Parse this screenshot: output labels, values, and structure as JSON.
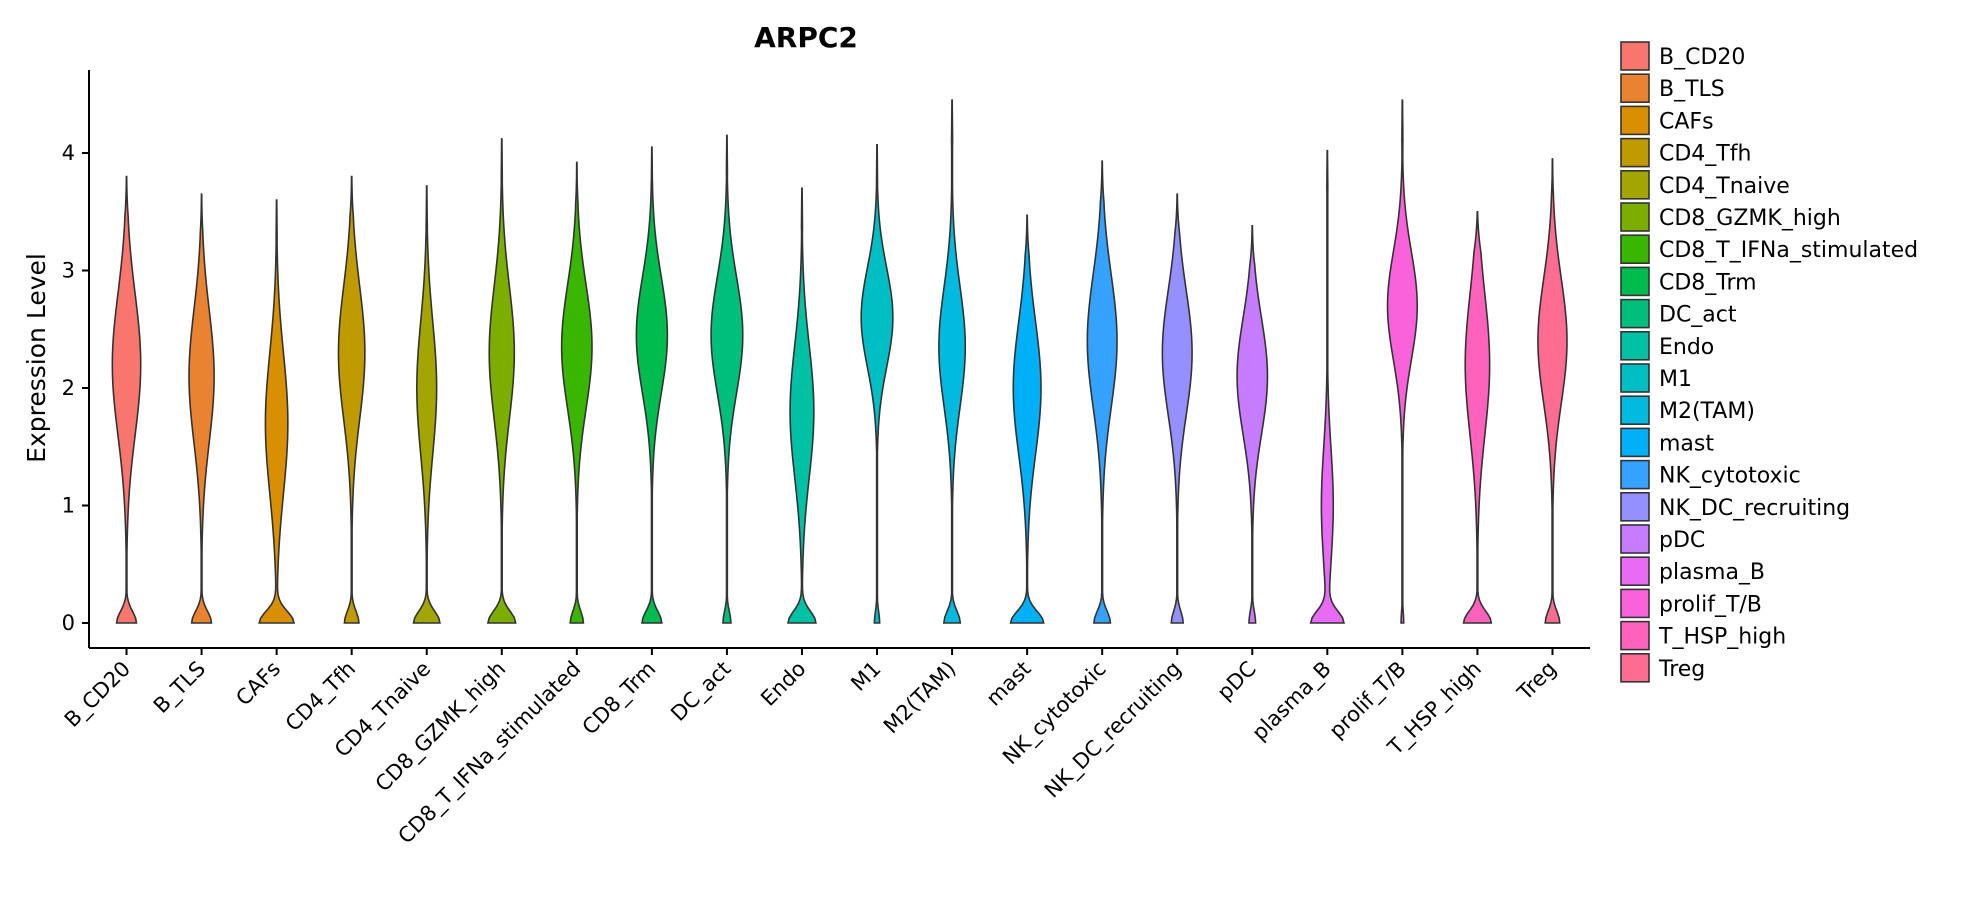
{
  "chart_data": {
    "type": "violin",
    "title": "ARPC2",
    "xlabel": "",
    "ylabel": "Expression Level",
    "ylim": [
      -0.2,
      4.75
    ],
    "yticks": [
      0,
      1,
      2,
      3,
      4
    ],
    "grid": false,
    "legend_position": "right",
    "categories": [
      "B_CD20",
      "B_TLS",
      "CAFs",
      "CD4_Tfh",
      "CD4_Tnaive",
      "CD8_GZMK_high",
      "CD8_T_IFNa_stimulated",
      "CD8_Trm",
      "DC_act",
      "Endo",
      "M1",
      "M2(TAM)",
      "mast",
      "NK_cytotoxic",
      "NK_DC_recruiting",
      "pDC",
      "plasma_B",
      "prolif_T/B",
      "T_HSP_high",
      "Treg"
    ],
    "colors": [
      "#F8766D",
      "#EA8331",
      "#D89000",
      "#C09B00",
      "#A3A500",
      "#7CAE00",
      "#39B600",
      "#00BB4E",
      "#00BF7D",
      "#00C1A3",
      "#00BFC4",
      "#00BAE0",
      "#00B0F6",
      "#35A2FF",
      "#9590FF",
      "#C77CFF",
      "#E76BF3",
      "#FA62DB",
      "#FF62BC",
      "#FF6C91"
    ],
    "series": [
      {
        "name": "B_CD20",
        "max": 3.8,
        "zero_width": 0.3,
        "main_center": 2.2,
        "main_width": 0.43,
        "main_spread": 0.85
      },
      {
        "name": "B_TLS",
        "max": 3.65,
        "zero_width": 0.3,
        "main_center": 2.1,
        "main_width": 0.38,
        "main_spread": 0.8
      },
      {
        "name": "CAFs",
        "max": 3.6,
        "zero_width": 0.52,
        "main_center": 1.7,
        "main_width": 0.34,
        "main_spread": 0.85
      },
      {
        "name": "CD4_Tfh",
        "max": 3.8,
        "zero_width": 0.22,
        "main_center": 2.3,
        "main_width": 0.4,
        "main_spread": 0.8
      },
      {
        "name": "CD4_Tnaive",
        "max": 3.72,
        "zero_width": 0.4,
        "main_center": 2.0,
        "main_width": 0.3,
        "main_spread": 0.8
      },
      {
        "name": "CD8_GZMK_high",
        "max": 4.12,
        "zero_width": 0.42,
        "main_center": 2.3,
        "main_width": 0.38,
        "main_spread": 0.8
      },
      {
        "name": "CD8_T_IFNa_stimulated",
        "max": 3.92,
        "zero_width": 0.2,
        "main_center": 2.35,
        "main_width": 0.46,
        "main_spread": 0.75
      },
      {
        "name": "CD8_Trm",
        "max": 4.05,
        "zero_width": 0.3,
        "main_center": 2.45,
        "main_width": 0.47,
        "main_spread": 0.7
      },
      {
        "name": "DC_act",
        "max": 4.15,
        "zero_width": 0.12,
        "main_center": 2.45,
        "main_width": 0.48,
        "main_spread": 0.7
      },
      {
        "name": "Endo",
        "max": 3.7,
        "zero_width": 0.42,
        "main_center": 1.8,
        "main_width": 0.36,
        "main_spread": 0.8
      },
      {
        "name": "M1",
        "max": 4.07,
        "zero_width": 0.08,
        "main_center": 2.6,
        "main_width": 0.48,
        "main_spread": 0.6
      },
      {
        "name": "M2(TAM)",
        "max": 4.45,
        "zero_width": 0.25,
        "main_center": 2.35,
        "main_width": 0.4,
        "main_spread": 0.72
      },
      {
        "name": "mast",
        "max": 3.47,
        "zero_width": 0.5,
        "main_center": 2.0,
        "main_width": 0.42,
        "main_spread": 0.8
      },
      {
        "name": "NK_cytotoxic",
        "max": 3.93,
        "zero_width": 0.25,
        "main_center": 2.4,
        "main_width": 0.45,
        "main_spread": 0.8
      },
      {
        "name": "NK_DC_recruiting",
        "max": 3.65,
        "zero_width": 0.18,
        "main_center": 2.3,
        "main_width": 0.45,
        "main_spread": 0.75
      },
      {
        "name": "pDC",
        "max": 3.38,
        "zero_width": 0.1,
        "main_center": 2.1,
        "main_width": 0.46,
        "main_spread": 0.7
      },
      {
        "name": "plasma_B",
        "max": 4.02,
        "zero_width": 0.48,
        "main_center": 1.0,
        "main_width": 0.18,
        "main_spread": 0.7
      },
      {
        "name": "prolif_T/B",
        "max": 4.45,
        "zero_width": 0.04,
        "main_center": 2.7,
        "main_width": 0.45,
        "main_spread": 0.65
      },
      {
        "name": "T_HSP_high",
        "max": 3.5,
        "zero_width": 0.42,
        "main_center": 2.2,
        "main_width": 0.37,
        "main_spread": 0.85
      },
      {
        "name": "Treg",
        "max": 3.95,
        "zero_width": 0.22,
        "main_center": 2.4,
        "main_width": 0.44,
        "main_spread": 0.75
      }
    ]
  }
}
